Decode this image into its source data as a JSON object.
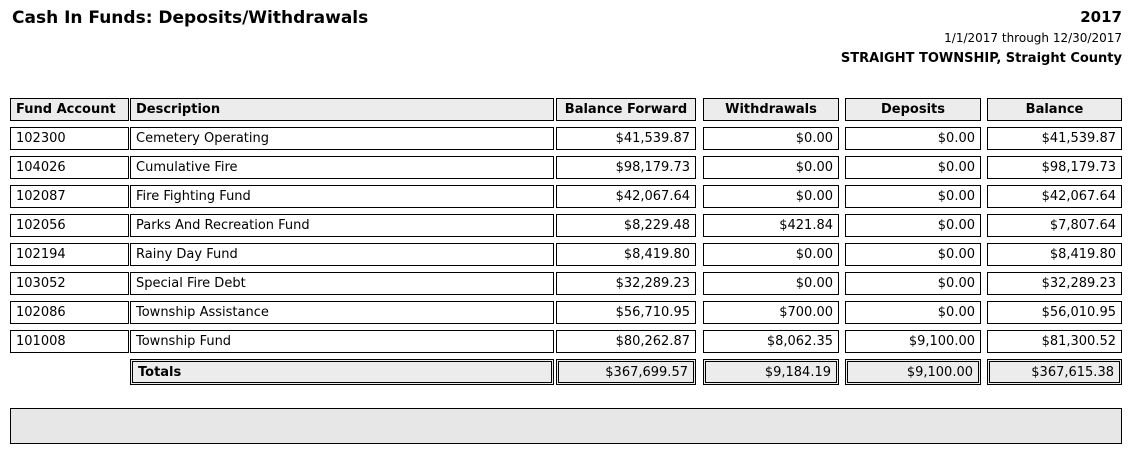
{
  "report": {
    "title": "Cash In Funds: Deposits/Withdrawals",
    "year": "2017",
    "date_range": "1/1/2017 through 12/30/2017",
    "entity": "STRAIGHT TOWNSHIP, Straight County"
  },
  "table": {
    "columns": [
      "Fund Account",
      "Description",
      "Balance Forward",
      "Withdrawals",
      "Deposits",
      "Balance"
    ],
    "rows": [
      {
        "fund_account": "102300",
        "description": "Cemetery Operating",
        "balance_forward": "$41,539.87",
        "withdrawals": "$0.00",
        "deposits": "$0.00",
        "balance": "$41,539.87"
      },
      {
        "fund_account": "104026",
        "description": "Cumulative Fire",
        "balance_forward": "$98,179.73",
        "withdrawals": "$0.00",
        "deposits": "$0.00",
        "balance": "$98,179.73"
      },
      {
        "fund_account": "102087",
        "description": "Fire Fighting Fund",
        "balance_forward": "$42,067.64",
        "withdrawals": "$0.00",
        "deposits": "$0.00",
        "balance": "$42,067.64"
      },
      {
        "fund_account": "102056",
        "description": "Parks And Recreation Fund",
        "balance_forward": "$8,229.48",
        "withdrawals": "$421.84",
        "deposits": "$0.00",
        "balance": "$7,807.64"
      },
      {
        "fund_account": "102194",
        "description": "Rainy Day Fund",
        "balance_forward": "$8,419.80",
        "withdrawals": "$0.00",
        "deposits": "$0.00",
        "balance": "$8,419.80"
      },
      {
        "fund_account": "103052",
        "description": "Special Fire Debt",
        "balance_forward": "$32,289.23",
        "withdrawals": "$0.00",
        "deposits": "$0.00",
        "balance": "$32,289.23"
      },
      {
        "fund_account": "102086",
        "description": "Township Assistance",
        "balance_forward": "$56,710.95",
        "withdrawals": "$700.00",
        "deposits": "$0.00",
        "balance": "$56,010.95"
      },
      {
        "fund_account": "101008",
        "description": "Township Fund",
        "balance_forward": "$80,262.87",
        "withdrawals": "$8,062.35",
        "deposits": "$9,100.00",
        "balance": "$81,300.52"
      }
    ],
    "totals": {
      "label": "Totals",
      "balance_forward": "$367,699.57",
      "withdrawals": "$9,184.19",
      "deposits": "$9,100.00",
      "balance": "$367,615.38"
    }
  }
}
